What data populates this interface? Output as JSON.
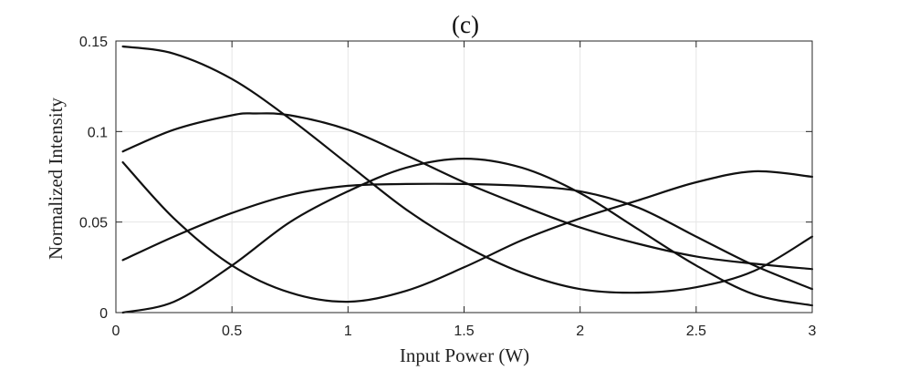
{
  "chart_data": {
    "type": "line",
    "title": "(c)",
    "xlabel": "Input Power (W)",
    "ylabel": "Normalized Intensity",
    "xlim": [
      0,
      3
    ],
    "ylim": [
      0,
      0.15
    ],
    "xticks": [
      0,
      0.5,
      1,
      1.5,
      2,
      2.5,
      3
    ],
    "xtick_labels": [
      "0",
      "0.5",
      "1",
      "1.5",
      "2",
      "2.5",
      "3"
    ],
    "yticks": [
      0,
      0.05,
      0.1,
      0.15
    ],
    "ytick_labels": [
      "0",
      "0.05",
      "0.1",
      "0.15"
    ],
    "grid": true,
    "line_color": "#111111",
    "series": [
      {
        "x": [
          0.03,
          0.25,
          0.5,
          0.75,
          1.0,
          1.25,
          1.5,
          1.75,
          2.0,
          2.25,
          2.5,
          2.75,
          3.0
        ],
        "y": [
          0.147,
          0.143,
          0.129,
          0.107,
          0.082,
          0.057,
          0.037,
          0.022,
          0.013,
          0.011,
          0.014,
          0.023,
          0.042
        ]
      },
      {
        "x": [
          0.03,
          0.25,
          0.5,
          0.6,
          0.75,
          1.0,
          1.25,
          1.5,
          1.75,
          2.0,
          2.25,
          2.5,
          2.75,
          3.0
        ],
        "y": [
          0.089,
          0.101,
          0.109,
          0.11,
          0.109,
          0.101,
          0.087,
          0.072,
          0.059,
          0.047,
          0.038,
          0.031,
          0.027,
          0.024
        ]
      },
      {
        "x": [
          0.03,
          0.25,
          0.5,
          0.75,
          1.0,
          1.25,
          1.5,
          1.75,
          2.0,
          2.25,
          2.5,
          2.75,
          3.0
        ],
        "y": [
          0.083,
          0.052,
          0.026,
          0.011,
          0.006,
          0.012,
          0.025,
          0.04,
          0.052,
          0.062,
          0.072,
          0.078,
          0.075
        ]
      },
      {
        "x": [
          0.03,
          0.25,
          0.5,
          0.75,
          1.0,
          1.25,
          1.5,
          1.75,
          2.0,
          2.25,
          2.5,
          2.75,
          3.0
        ],
        "y": [
          0.029,
          0.042,
          0.055,
          0.065,
          0.07,
          0.071,
          0.071,
          0.07,
          0.067,
          0.058,
          0.042,
          0.026,
          0.013
        ]
      },
      {
        "x": [
          0.03,
          0.25,
          0.5,
          0.75,
          1.0,
          1.25,
          1.5,
          1.75,
          2.0,
          2.25,
          2.5,
          2.75,
          3.0
        ],
        "y": [
          0.0,
          0.006,
          0.026,
          0.05,
          0.067,
          0.08,
          0.085,
          0.08,
          0.066,
          0.046,
          0.026,
          0.01,
          0.004
        ]
      }
    ]
  }
}
